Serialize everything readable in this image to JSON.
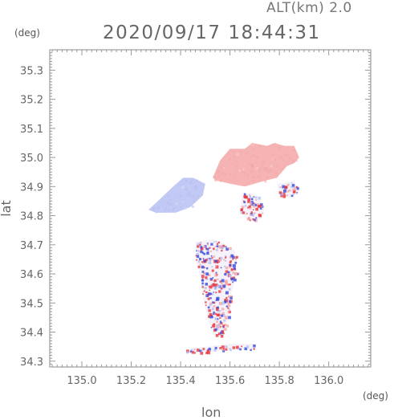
{
  "header": {
    "altitude_label": "ALT(km) 2.0",
    "datetime": "2020/09/17 18:44:31"
  },
  "axes": {
    "lat_unit": "(deg)",
    "lon_unit": "(deg)",
    "lat_title": "lat",
    "lon_title": "lon"
  },
  "chart_data": {
    "type": "heatmap",
    "xlabel": "lon",
    "ylabel": "lat",
    "xlim": [
      134.87,
      136.17
    ],
    "ylim": [
      34.28,
      35.37
    ],
    "xticks": [
      "135.0",
      "135.2",
      "135.4",
      "135.6",
      "135.8",
      "136.0"
    ],
    "xtick_values": [
      135.0,
      135.2,
      135.4,
      135.6,
      135.8,
      136.0
    ],
    "yticks": [
      "34.3",
      "34.4",
      "34.5",
      "34.6",
      "34.7",
      "34.8",
      "34.9",
      "35.0",
      "35.1",
      "35.2",
      "35.3"
    ],
    "ytick_values": [
      34.3,
      34.4,
      34.5,
      34.6,
      34.7,
      34.8,
      34.9,
      35.0,
      35.1,
      35.2,
      35.3
    ],
    "grid": false,
    "colors": {
      "positive": "#f4a6a6",
      "positive_strong": "#e8343c",
      "negative": "#b7bff2",
      "negative_strong": "#3848e0",
      "frame": "#888888"
    },
    "regions": [
      {
        "name": "north-positive",
        "sign": "positive",
        "polygon": [
          [
            135.53,
            34.93
          ],
          [
            135.56,
            34.99
          ],
          [
            135.6,
            35.03
          ],
          [
            135.66,
            35.03
          ],
          [
            135.69,
            35.05
          ],
          [
            135.75,
            35.04
          ],
          [
            135.78,
            35.05
          ],
          [
            135.82,
            35.04
          ],
          [
            135.86,
            35.04
          ],
          [
            135.88,
            35.0
          ],
          [
            135.86,
            34.98
          ],
          [
            135.83,
            34.97
          ],
          [
            135.79,
            34.93
          ],
          [
            135.74,
            34.92
          ],
          [
            135.66,
            34.9
          ],
          [
            135.6,
            34.91
          ],
          [
            135.55,
            34.92
          ]
        ]
      },
      {
        "name": "west-negative",
        "sign": "negative",
        "polygon": [
          [
            135.27,
            34.82
          ],
          [
            135.32,
            34.86
          ],
          [
            135.37,
            34.9
          ],
          [
            135.41,
            34.93
          ],
          [
            135.45,
            34.93
          ],
          [
            135.5,
            34.91
          ],
          [
            135.49,
            34.87
          ],
          [
            135.44,
            34.83
          ],
          [
            135.38,
            34.81
          ],
          [
            135.3,
            34.81
          ]
        ]
      },
      {
        "name": "south-mixed",
        "sign": "mixed",
        "polygon": [
          [
            135.46,
            34.71
          ],
          [
            135.53,
            34.72
          ],
          [
            135.58,
            34.7
          ],
          [
            135.62,
            34.68
          ],
          [
            135.63,
            34.6
          ],
          [
            135.6,
            34.52
          ],
          [
            135.59,
            34.44
          ],
          [
            135.57,
            34.39
          ],
          [
            135.53,
            34.39
          ],
          [
            135.51,
            34.45
          ],
          [
            135.49,
            34.52
          ],
          [
            135.48,
            34.59
          ],
          [
            135.46,
            34.65
          ]
        ]
      },
      {
        "name": "east-mixed",
        "sign": "mixed",
        "polygon": [
          [
            135.65,
            34.88
          ],
          [
            135.71,
            34.87
          ],
          [
            135.74,
            34.83
          ],
          [
            135.73,
            34.79
          ],
          [
            135.68,
            34.78
          ],
          [
            135.64,
            34.81
          ]
        ]
      },
      {
        "name": "northeast-mixed",
        "sign": "mixed",
        "polygon": [
          [
            135.79,
            34.91
          ],
          [
            135.86,
            34.92
          ],
          [
            135.88,
            34.88
          ],
          [
            135.84,
            34.86
          ],
          [
            135.8,
            34.87
          ]
        ]
      },
      {
        "name": "southern-fringe",
        "sign": "mixed",
        "polygon": [
          [
            135.42,
            34.34
          ],
          [
            135.5,
            34.35
          ],
          [
            135.6,
            34.36
          ],
          [
            135.7,
            34.36
          ],
          [
            135.7,
            34.34
          ],
          [
            135.6,
            34.34
          ],
          [
            135.5,
            34.33
          ],
          [
            135.42,
            34.33
          ]
        ]
      }
    ]
  }
}
